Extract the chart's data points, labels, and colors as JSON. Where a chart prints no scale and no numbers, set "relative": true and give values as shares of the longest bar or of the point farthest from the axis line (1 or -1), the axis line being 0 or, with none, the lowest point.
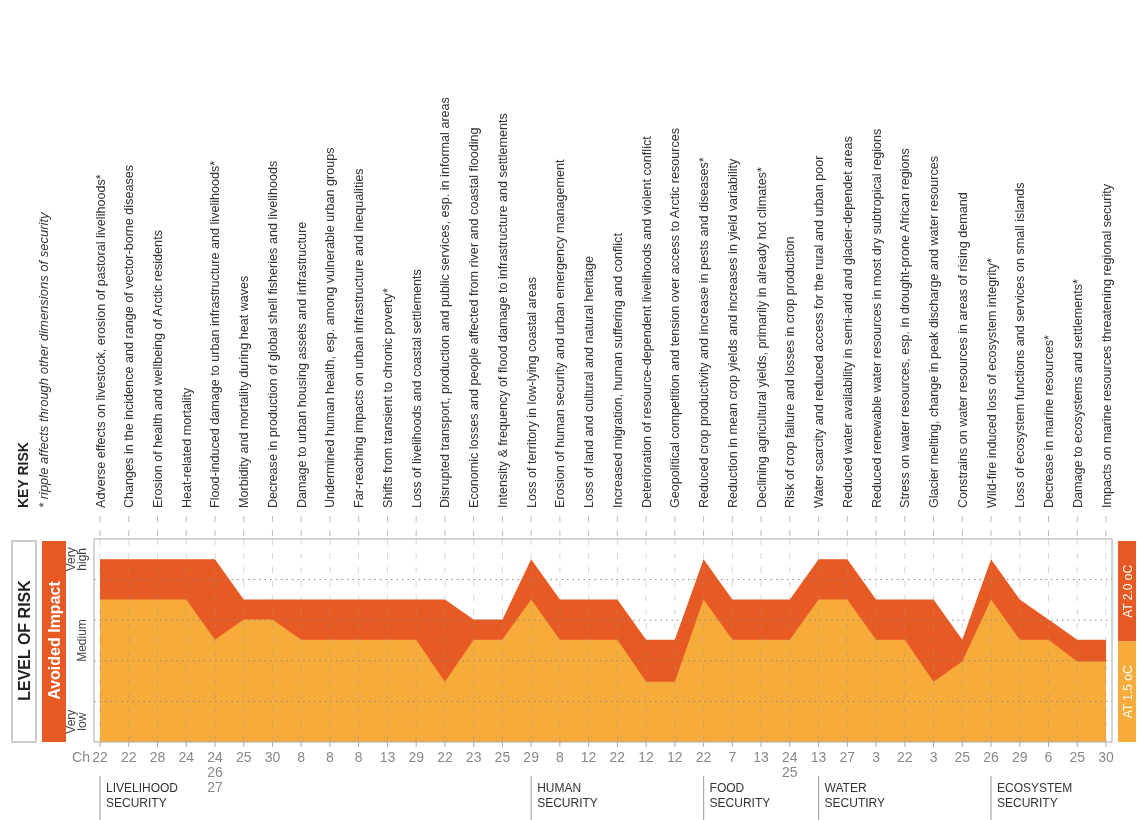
{
  "chart_data": {
    "type": "area",
    "title": "KEY RISK",
    "subtitle": "* ripple affects through other dimensions of security",
    "ylabel": "LEVEL OF RISK",
    "relative": true,
    "categories": [
      "Adverse effects on livestock, erosion of pastoral livelihoods*",
      "Changes in the incidence and range of vector-borne diseases",
      "Erosion of health and wellbeing of Arctic residents",
      "Heat-related mortality",
      "Flood-induced damage to urban infrastructure and livelihoods*",
      "Morbidity and mortality during heat waves",
      "Decrease in production of global shell fisheries and livelihoods",
      "Damage to urban housing assets and infrastructure",
      "Undermined human health, esp. among vulnerable urban groups",
      "Far-reaching impacts on urban infrastructure and inequalities",
      "Shifts from transient to chronic poverty*",
      "Loss of livelihoods and coastal settlements",
      "Disrupted transport, production and public services, esp. in informal areas",
      "Economic losses and people affected from river and coastal flooding",
      "Intensity & frequency of flood damage to infrastructure and settlements",
      "Loss of territory in low-lying coastal areas",
      "Erosion of human security and urban emergency management",
      "Loss of land and cultural and natural heritage",
      "Increased migration, human suffering and conflict",
      "Deterioration of resource-dependent livelihoods and violent conflict",
      "Geopolitical competition and tension over access to Arctic resources",
      "Reduced crop productivity and increase in pests and diseases*",
      "Reduction in mean crop yields and increases in yield variability",
      "Declining agricultural yields, primarily in already hot climates*",
      "Risk of crop failure and losses in crop production",
      "Water scarcity and reduced access for the rural and urban poor",
      "Reduced water availability in semi-arid and glacier-dependet areas",
      "Reduced renewable water resources in most dry subtropical regions",
      "Stress on water resources, esp. in drought-prone African regions",
      "Glacier melting, change in peak discharge and water resources",
      "Constrains on water resources in areas of rising demand",
      "Wild-fire induced loss of ecosystem integrity*",
      "Loss of ecosystem functions and services on small islands",
      "Decrease in marine resources*",
      "Damage to ecosystems and settlements*",
      "Impacts on marine resources threatening regional security"
    ],
    "series": [
      {
        "name": "AT 2.0 oC",
        "color": "#e85a24",
        "values": [
          1,
          1,
          1,
          1,
          1,
          0.78,
          0.78,
          0.78,
          0.78,
          0.78,
          0.78,
          0.78,
          0.78,
          0.67,
          0.67,
          1,
          0.78,
          0.78,
          0.78,
          0.56,
          0.56,
          1,
          0.78,
          0.78,
          0.78,
          1,
          1,
          0.78,
          0.78,
          0.78,
          0.56,
          1,
          0.78,
          0.67,
          0.56,
          0.56
        ]
      },
      {
        "name": "AT 1.5 oC",
        "color": "#f7ab3b",
        "values": [
          0.78,
          0.78,
          0.78,
          0.78,
          0.56,
          0.67,
          0.67,
          0.56,
          0.56,
          0.56,
          0.56,
          0.56,
          0.33,
          0.56,
          0.56,
          0.78,
          0.56,
          0.56,
          0.56,
          0.33,
          0.33,
          0.78,
          0.56,
          0.56,
          0.56,
          0.78,
          0.78,
          0.56,
          0.56,
          0.33,
          0.44,
          0.78,
          0.56,
          0.56,
          0.44,
          0.44
        ]
      }
    ],
    "ref_lines": [
      {
        "axis": "x",
        "value": "Adverse effects on livestock, erosion of pastoral livelihoods*",
        "label": "LIVELIHOOD SECURITY",
        "color": "#aaaaaa"
      },
      {
        "axis": "x",
        "value": "Loss of territory in low-lying coastal areas",
        "label": "HUMAN SECURITY",
        "color": "#aaaaaa"
      },
      {
        "axis": "x",
        "value": "Reduced crop productivity and increase in pests and diseases*",
        "label": "FOOD SECURITY",
        "color": "#aaaaaa"
      },
      {
        "axis": "x",
        "value": "Water scarcity and reduced access for the rural and urban poor",
        "label": "WATER SECUTIRY",
        "color": "#aaaaaa"
      },
      {
        "axis": "x",
        "value": "Wild-fire induced loss of ecosystem integrity*",
        "label": "ECOSYSTEM SECURITY",
        "color": "#aaaaaa"
      }
    ],
    "annotations": [
      "Avoided Impact",
      "Very low",
      "Medium",
      "Very high",
      "Ch",
      "22",
      "22",
      "28",
      "24",
      "24 26 27",
      "25",
      "30",
      "8",
      "8",
      "8",
      "13",
      "29",
      "22",
      "23",
      "25",
      "29",
      "8",
      "12",
      "22",
      "12",
      "12",
      "22",
      "7",
      "13",
      "24 25",
      "13",
      "27",
      "3",
      "22",
      "3",
      "25",
      "26",
      "29",
      "6",
      "25",
      "30"
    ],
    "grid": true,
    "legend": "right"
  }
}
